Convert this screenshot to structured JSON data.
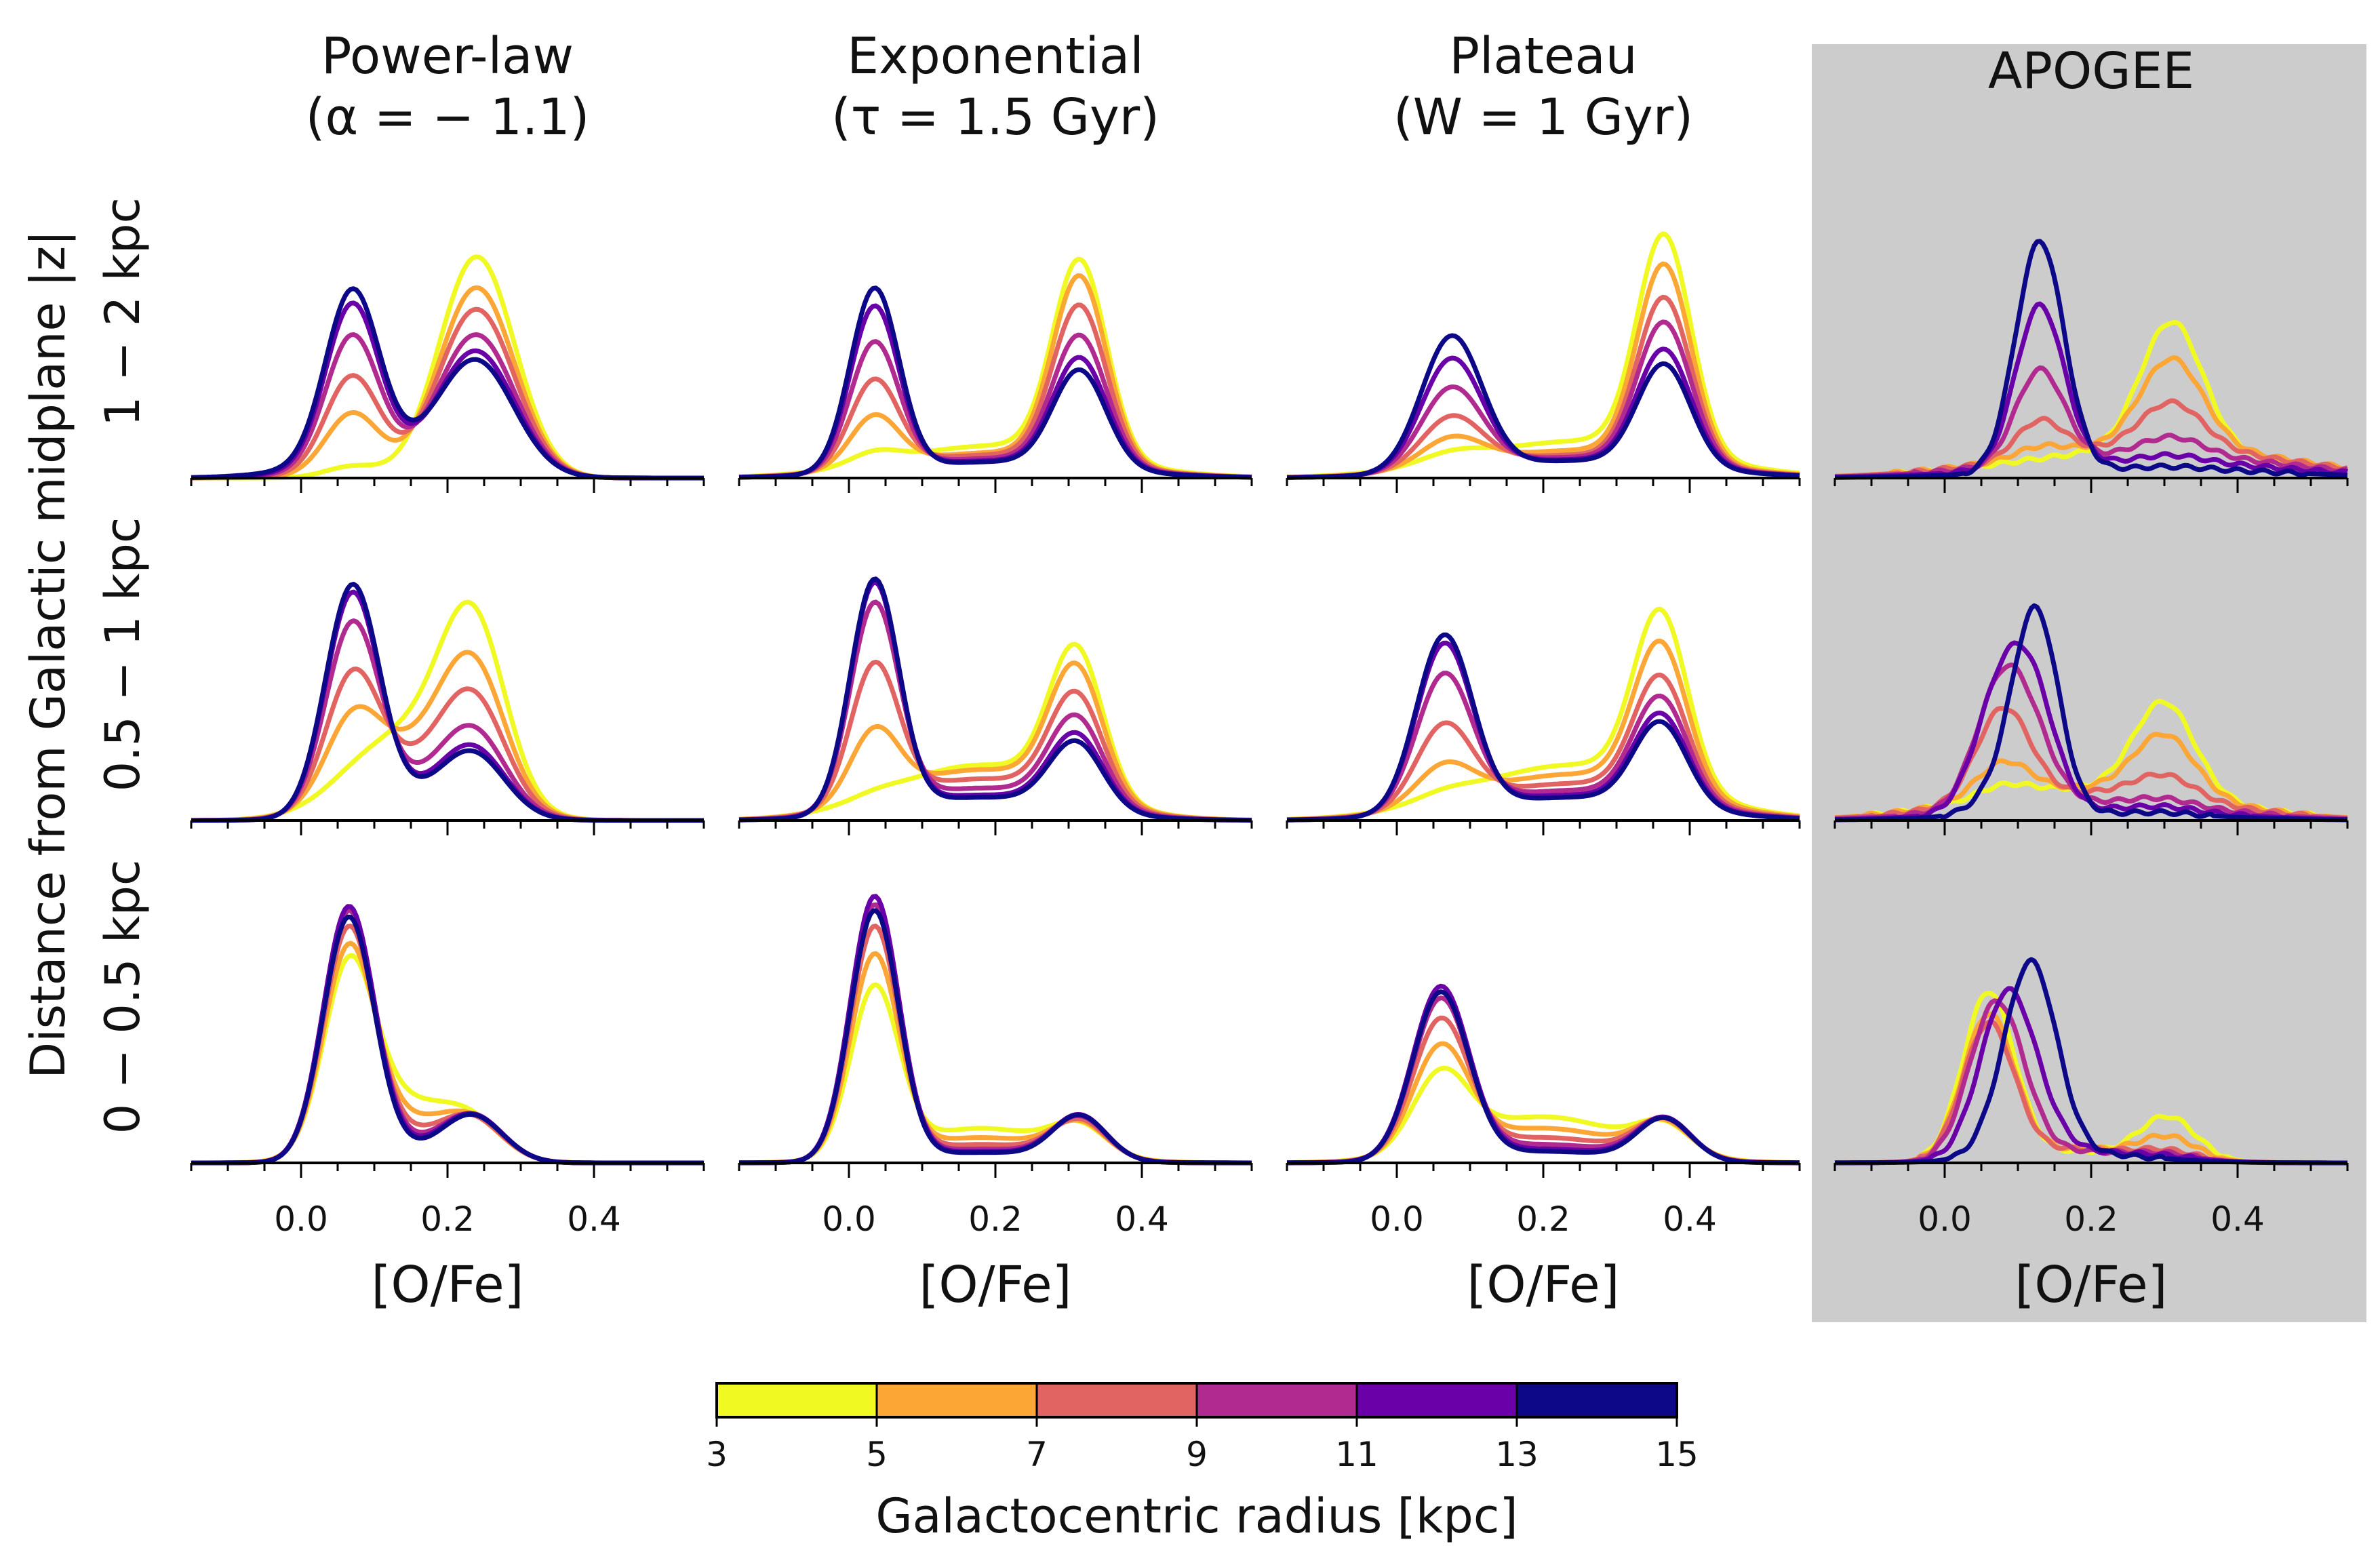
{
  "figure": {
    "columns": [
      {
        "title_line1": "Power-law",
        "title_line2": "(α = − 1.1)",
        "background": "#ffffff"
      },
      {
        "title_line1": "Exponential",
        "title_line2": "(τ = 1.5 Gyr)",
        "background": "#ffffff"
      },
      {
        "title_line1": "Plateau",
        "title_line2": "(W = 1 Gyr)",
        "background": "#ffffff"
      },
      {
        "title_line1": "APOGEE",
        "title_line2": "",
        "background": "#cccccc"
      }
    ],
    "row_labels": [
      "1 − 2 kpc",
      "0.5 − 1 kpc",
      "0 − 0.5 kpc"
    ],
    "ylabel": "Distance from Galactic midplane |z|",
    "xlabel": "[O/Fe]",
    "colorbar": {
      "label": "Galactocentric radius [kpc]",
      "ticks": [
        "3",
        "5",
        "7",
        "9",
        "11",
        "13",
        "15"
      ],
      "colors": [
        "#f0f921",
        "#fca636",
        "#e16462",
        "#b12a90",
        "#6a00a8",
        "#0d0887"
      ]
    }
  },
  "chart_data": {
    "type": "line",
    "xlim": [
      -0.15,
      0.55
    ],
    "xticks": [
      "0.0",
      "0.2",
      "0.4"
    ],
    "xtick_values": [
      0.0,
      0.2,
      0.4
    ],
    "grid": false,
    "legend": "colorbar-bottom",
    "series_radii_kpc": [
      "3-5",
      "5-7",
      "7-9",
      "9-11",
      "11-13",
      "13-15"
    ],
    "panels": [
      {
        "col": 0,
        "row": 0,
        "peaks": [
          [
            0.07,
            0.011,
            [
              0.05,
              0.27,
              0.42,
              0.58,
              0.7,
              0.74
            ]
          ],
          [
            0.24,
            0.022,
            [
              0.96,
              0.82,
              0.72,
              0.6,
              0.52,
              0.47
            ]
          ]
        ],
        "tail": [
          0.0,
          0.012,
          0.025,
          0.045,
          0.065,
          0.09
        ],
        "tail_center": 0.12,
        "tail_width": 0.1
      },
      {
        "col": 1,
        "row": 0,
        "peaks": [
          [
            0.035,
            0.009,
            [
              0.05,
              0.22,
              0.38,
              0.55,
              0.71,
              0.79
            ]
          ],
          [
            0.315,
            0.011,
            [
              0.85,
              0.8,
              0.68,
              0.56,
              0.47,
              0.42
            ]
          ]
        ],
        "tail": [
          0.14,
          0.11,
          0.1,
          0.085,
          0.075,
          0.07
        ],
        "tail_center": 0.2,
        "tail_width": 0.14
      },
      {
        "col": 2,
        "row": 0,
        "peaks": [
          [
            0.075,
            0.014,
            [
              0.04,
              0.12,
              0.22,
              0.35,
              0.48,
              0.58
            ]
          ],
          [
            0.365,
            0.011,
            [
              0.94,
              0.84,
              0.71,
              0.61,
              0.5,
              0.44
            ]
          ]
        ],
        "tail": [
          0.16,
          0.12,
          0.1,
          0.09,
          0.08,
          0.075
        ],
        "tail_center": 0.25,
        "tail_width": 0.15
      },
      {
        "col": 3,
        "row": 0,
        "peaks": [
          [
            0.13,
            0.009,
            [
              0.0,
              0.04,
              0.16,
              0.4,
              0.7,
              1.0
            ]
          ],
          [
            0.31,
            0.015,
            [
              0.56,
              0.38,
              0.2,
              0.08,
              0.03,
              0.01
            ]
          ]
        ],
        "tail": [
          0.12,
          0.14,
          0.13,
          0.1,
          0.07,
          0.04
        ],
        "tail_center": 0.28,
        "tail_width": 0.18
      },
      {
        "col": 0,
        "row": 1,
        "peaks": [
          [
            0.07,
            0.011,
            [
              0.02,
              0.3,
              0.52,
              0.78,
              0.93,
              0.97
            ]
          ],
          [
            0.235,
            0.016,
            [
              0.72,
              0.55,
              0.44,
              0.33,
              0.27,
              0.25
            ]
          ]
        ],
        "tail": [
          0.38,
          0.3,
          0.22,
          0.14,
          0.1,
          0.09
        ],
        "tail_center": 0.15,
        "tail_width": 0.08
      },
      {
        "col": 1,
        "row": 1,
        "peaks": [
          [
            0.035,
            0.009,
            [
              0.02,
              0.3,
              0.6,
              0.88,
              0.98,
              1.0
            ]
          ],
          [
            0.31,
            0.011,
            [
              0.63,
              0.56,
              0.46,
              0.38,
              0.32,
              0.29
            ]
          ]
        ],
        "tail": [
          0.24,
          0.22,
          0.18,
          0.14,
          0.11,
          0.1
        ],
        "tail_center": 0.18,
        "tail_width": 0.12
      },
      {
        "col": 2,
        "row": 1,
        "peaks": [
          [
            0.065,
            0.012,
            [
              0.03,
              0.16,
              0.35,
              0.58,
              0.72,
              0.76
            ]
          ],
          [
            0.36,
            0.011,
            [
              0.75,
              0.64,
              0.52,
              0.45,
              0.39,
              0.36
            ]
          ]
        ],
        "tail": [
          0.24,
          0.2,
          0.16,
          0.13,
          0.11,
          0.1
        ],
        "tail_center": 0.24,
        "tail_width": 0.14
      },
      {
        "col": 3,
        "row": 1,
        "peaks": [
          [
            0.08,
            0.011,
            [
              0.05,
              0.15,
              0.4,
              0.55,
              0.55,
              0.1
            ]
          ],
          [
            0.125,
            0.008,
            [
              0.0,
              0.0,
              0.0,
              0.15,
              0.35,
              0.85
            ]
          ],
          [
            0.3,
            0.014,
            [
              0.4,
              0.26,
              0.1,
              0.03,
              0.02,
              0.01
            ]
          ]
        ],
        "tail": [
          0.14,
          0.14,
          0.12,
          0.08,
          0.05,
          0.03
        ],
        "tail_center": 0.2,
        "tail_width": 0.16
      },
      {
        "col": 0,
        "row": 2,
        "peaks": [
          [
            0.065,
            0.01,
            [
              0.75,
              0.85,
              0.96,
              1.05,
              1.08,
              1.04
            ]
          ],
          [
            0.235,
            0.014,
            [
              0.12,
              0.14,
              0.16,
              0.18,
              0.19,
              0.19
            ]
          ]
        ],
        "tail": [
          0.26,
          0.18,
          0.12,
          0.08,
          0.06,
          0.05
        ],
        "tail_center": 0.14,
        "tail_width": 0.07
      },
      {
        "col": 1,
        "row": 2,
        "peaks": [
          [
            0.035,
            0.009,
            [
              0.72,
              0.87,
              1.0,
              1.1,
              1.14,
              1.08
            ]
          ],
          [
            0.315,
            0.011,
            [
              0.12,
              0.14,
              0.16,
              0.18,
              0.19,
              0.19
            ]
          ]
        ],
        "tail": [
          0.15,
          0.11,
          0.08,
          0.06,
          0.05,
          0.045
        ],
        "tail_center": 0.18,
        "tail_width": 0.1
      },
      {
        "col": 2,
        "row": 2,
        "peaks": [
          [
            0.06,
            0.012,
            [
              0.32,
              0.45,
              0.58,
              0.68,
              0.74,
              0.72
            ]
          ],
          [
            0.365,
            0.011,
            [
              0.12,
              0.14,
              0.16,
              0.17,
              0.18,
              0.18
            ]
          ]
        ],
        "tail": [
          0.2,
          0.15,
          0.11,
          0.08,
          0.06,
          0.05
        ],
        "tail_center": 0.2,
        "tail_width": 0.11
      },
      {
        "col": 3,
        "row": 2,
        "peaks": [
          [
            0.06,
            0.01,
            [
              0.72,
              0.62,
              0.58,
              0.4,
              0.1,
              0.0
            ]
          ],
          [
            0.085,
            0.01,
            [
              0.0,
              0.0,
              0.0,
              0.32,
              0.55,
              0.1
            ]
          ],
          [
            0.12,
            0.01,
            [
              0.0,
              0.0,
              0.0,
              0.0,
              0.15,
              0.78
            ]
          ],
          [
            0.305,
            0.012,
            [
              0.18,
              0.09,
              0.03,
              0.02,
              0.01,
              0.0
            ]
          ]
        ],
        "tail": [
          0.05,
          0.06,
          0.06,
          0.05,
          0.05,
          0.04
        ],
        "tail_center": 0.18,
        "tail_width": 0.1
      }
    ]
  }
}
